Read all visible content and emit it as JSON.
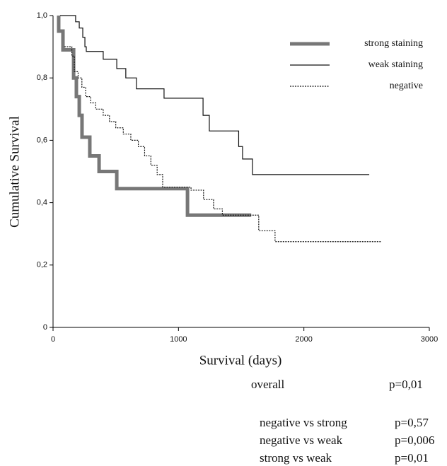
{
  "chart_data": {
    "type": "step",
    "x_label": "Survival (days)",
    "y_label": "Cumulative Survival",
    "xlim": [
      0,
      3000
    ],
    "xticks": [
      0,
      1000,
      2000,
      3000
    ],
    "ylim": [
      0,
      1
    ],
    "yticks": [
      0,
      {
        "value": 0.2,
        "label": "0,2"
      },
      {
        "value": 0.4,
        "label": "0,4"
      },
      {
        "value": 0.6,
        "label": "0,6"
      },
      {
        "value": 0.8,
        "label": "0,8"
      },
      {
        "value": 1,
        "label": "1,0"
      }
    ],
    "legend": "top-right",
    "series": [
      {
        "name": "strong staining",
        "color": "#777777",
        "style": "thick",
        "x": [
          45,
          45,
          79,
          79,
          164,
          164,
          186,
          186,
          209,
          209,
          231,
          231,
          293,
          293,
          367,
          367,
          508,
          508,
          1072,
          1072,
          1580
        ],
        "values": [
          1,
          0.95,
          0.95,
          0.89,
          0.89,
          0.8,
          0.8,
          0.74,
          0.74,
          0.68,
          0.68,
          0.61,
          0.61,
          0.55,
          0.55,
          0.5,
          0.5,
          0.445,
          0.445,
          0.36,
          0.36
        ]
      },
      {
        "name": "weak staining",
        "color": "#111111",
        "style": "thin",
        "x": [
          56,
          180,
          180,
          209,
          209,
          237,
          237,
          254,
          254,
          265,
          265,
          400,
          400,
          508,
          508,
          580,
          580,
          665,
          665,
          885,
          885,
          1196,
          1196,
          1246,
          1246,
          1480,
          1480,
          1511,
          1511,
          1590,
          1590,
          2521
        ],
        "values": [
          1,
          1,
          0.98,
          0.98,
          0.96,
          0.96,
          0.93,
          0.93,
          0.9,
          0.9,
          0.885,
          0.885,
          0.86,
          0.86,
          0.83,
          0.83,
          0.8,
          0.8,
          0.765,
          0.765,
          0.735,
          0.735,
          0.68,
          0.68,
          0.63,
          0.63,
          0.58,
          0.58,
          0.54,
          0.54,
          0.49,
          0.49
        ]
      },
      {
        "name": "negative",
        "color": "#111111",
        "style": "dotted",
        "x": [
          90,
          150,
          150,
          170,
          170,
          200,
          200,
          230,
          230,
          260,
          260,
          300,
          300,
          340,
          340,
          400,
          400,
          450,
          450,
          500,
          500,
          560,
          560,
          620,
          620,
          680,
          680,
          730,
          730,
          780,
          780,
          830,
          830,
          874,
          874,
          1100,
          1100,
          1200,
          1200,
          1280,
          1280,
          1350,
          1350,
          1640,
          1640,
          1770,
          1770,
          2620
        ],
        "values": [
          0.9,
          0.9,
          0.87,
          0.87,
          0.82,
          0.82,
          0.8,
          0.8,
          0.77,
          0.77,
          0.74,
          0.74,
          0.72,
          0.72,
          0.7,
          0.7,
          0.68,
          0.68,
          0.66,
          0.66,
          0.64,
          0.64,
          0.62,
          0.62,
          0.6,
          0.6,
          0.58,
          0.58,
          0.55,
          0.55,
          0.52,
          0.52,
          0.49,
          0.49,
          0.45,
          0.45,
          0.44,
          0.44,
          0.41,
          0.41,
          0.38,
          0.38,
          0.36,
          0.36,
          0.31,
          0.31,
          0.275,
          0.275
        ]
      }
    ],
    "annotations": [
      {
        "label": "overall",
        "p": "p=0,01"
      },
      {
        "label": "negative vs strong",
        "p": "p=0,57"
      },
      {
        "label": "negative vs weak",
        "p": "p=0,006"
      },
      {
        "label": "strong vs weak",
        "p": "p=0,01"
      }
    ]
  }
}
